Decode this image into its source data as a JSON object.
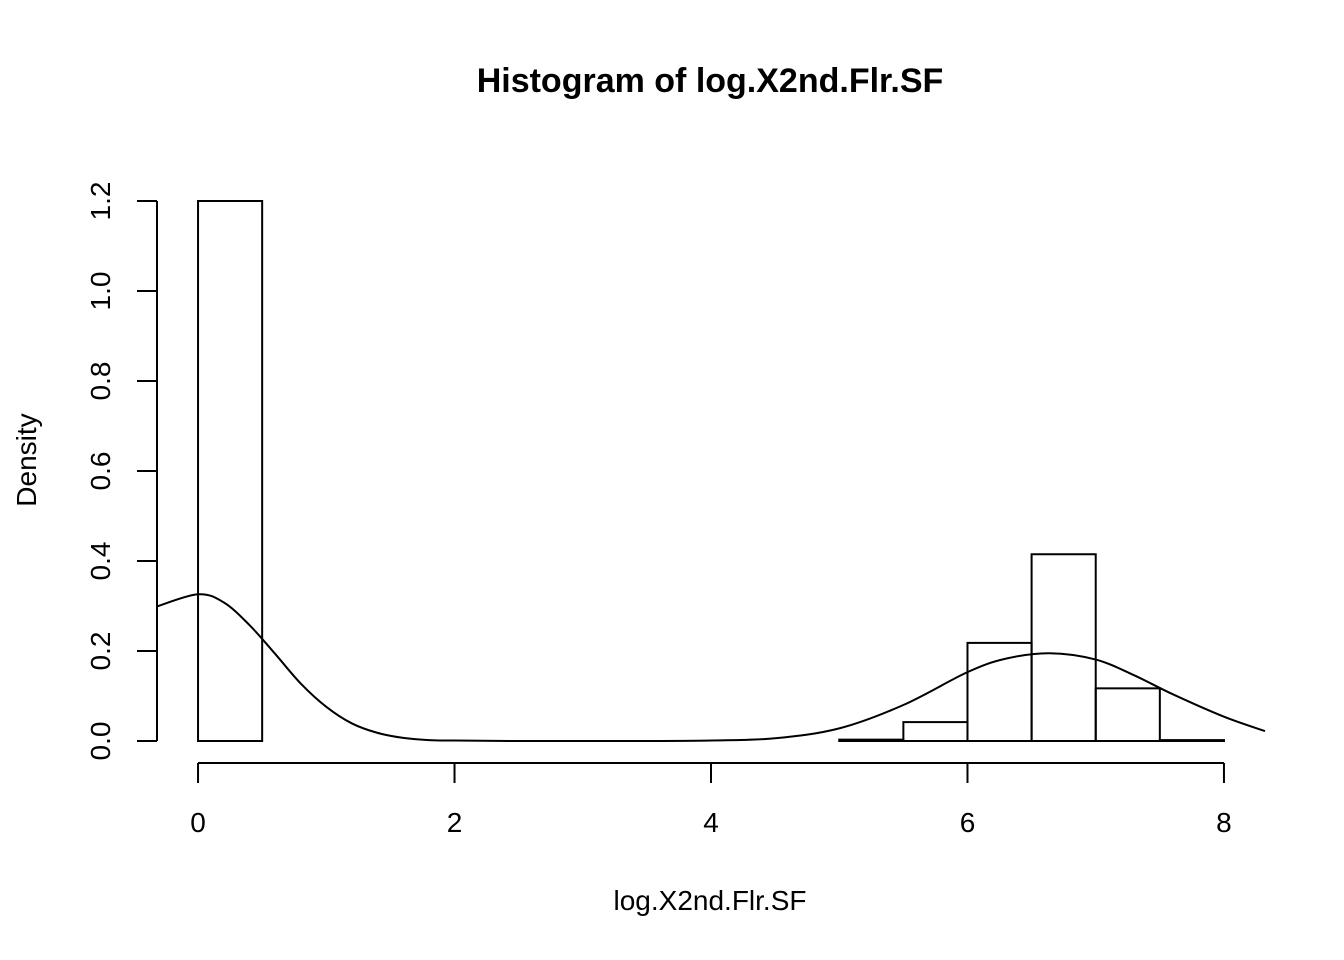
{
  "chart_data": {
    "type": "histogram",
    "title": "Histogram of log.X2nd.Flr.SF",
    "xlabel": "log.X2nd.Flr.SF",
    "ylabel": "Density",
    "xlim": [
      -0.32,
      8.32
    ],
    "ylim": [
      0,
      1.2
    ],
    "x_ticks": [
      0,
      2,
      4,
      6,
      8
    ],
    "x_tick_labels": [
      "0",
      "2",
      "4",
      "6",
      "8"
    ],
    "y_ticks": [
      0,
      0.2,
      0.4,
      0.6,
      0.8,
      1.0,
      1.2
    ],
    "y_tick_labels": [
      "0.0",
      "0.2",
      "0.4",
      "0.6",
      "0.8",
      "1.0",
      "1.2"
    ],
    "bins": [
      {
        "start": 0.0,
        "end": 0.5,
        "density": 1.2
      },
      {
        "start": 0.5,
        "end": 1.0,
        "density": 0
      },
      {
        "start": 1.0,
        "end": 1.5,
        "density": 0
      },
      {
        "start": 1.5,
        "end": 2.0,
        "density": 0
      },
      {
        "start": 2.0,
        "end": 2.5,
        "density": 0
      },
      {
        "start": 2.5,
        "end": 3.0,
        "density": 0
      },
      {
        "start": 3.0,
        "end": 3.5,
        "density": 0
      },
      {
        "start": 3.5,
        "end": 4.0,
        "density": 0
      },
      {
        "start": 4.0,
        "end": 4.5,
        "density": 0
      },
      {
        "start": 4.5,
        "end": 5.0,
        "density": 0
      },
      {
        "start": 5.0,
        "end": 5.5,
        "density": 0.003
      },
      {
        "start": 5.5,
        "end": 6.0,
        "density": 0.042
      },
      {
        "start": 6.0,
        "end": 6.5,
        "density": 0.218
      },
      {
        "start": 6.5,
        "end": 7.0,
        "density": 0.415
      },
      {
        "start": 7.0,
        "end": 7.5,
        "density": 0.117
      },
      {
        "start": 7.5,
        "end": 8.0,
        "density": 0.002
      }
    ],
    "density_curve": {
      "x": [
        -0.32,
        0.0,
        0.2,
        0.4,
        0.6,
        0.8,
        1.0,
        1.2,
        1.4,
        1.6,
        1.8,
        2.0,
        2.5,
        3.0,
        3.5,
        4.0,
        4.5,
        5.0,
        5.5,
        6.0,
        6.3,
        6.64,
        7.0,
        7.3,
        7.6,
        8.0,
        8.32
      ],
      "y": [
        0.299,
        0.326,
        0.308,
        0.258,
        0.194,
        0.128,
        0.076,
        0.039,
        0.018,
        0.007,
        0.002,
        0.001,
        0.0,
        0.0,
        0.0,
        0.001,
        0.006,
        0.028,
        0.08,
        0.153,
        0.183,
        0.195,
        0.181,
        0.146,
        0.104,
        0.054,
        0.022
      ]
    },
    "grid": false,
    "legend": "none"
  }
}
